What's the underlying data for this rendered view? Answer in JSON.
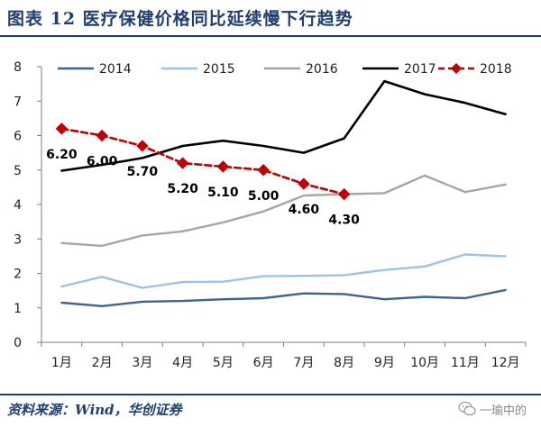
{
  "header": {
    "title": "图表 12   医疗保健价格同比延续慢下行趋势"
  },
  "footer": {
    "source": "资料来源：Wind，华创证券",
    "watermark": "一瑜中的"
  },
  "colors": {
    "title": "#1f3f73",
    "axis": "#7f7f7f"
  },
  "chart_data": {
    "type": "line",
    "title": "医疗保健价格同比延续慢下行趋势",
    "xlabel": "",
    "ylabel": "",
    "categories": [
      "1月",
      "2月",
      "3月",
      "4月",
      "5月",
      "6月",
      "7月",
      "8月",
      "9月",
      "10月",
      "11月",
      "12月"
    ],
    "ylim": [
      0,
      8
    ],
    "yticks": [
      "0",
      "1",
      "2",
      "3",
      "4",
      "5",
      "6",
      "7",
      "8"
    ],
    "legend_position": "top",
    "series": [
      {
        "name": "2014",
        "color": "#3d6494",
        "dashed": false,
        "marker": false,
        "values": [
          1.15,
          1.05,
          1.18,
          1.2,
          1.25,
          1.28,
          1.42,
          1.4,
          1.25,
          1.32,
          1.28,
          1.52
        ]
      },
      {
        "name": "2015",
        "color": "#9dc3e6",
        "dashed": false,
        "marker": false,
        "values": [
          1.62,
          1.9,
          1.58,
          1.75,
          1.76,
          1.92,
          1.93,
          1.95,
          2.1,
          2.2,
          2.55,
          2.5
        ]
      },
      {
        "name": "2016",
        "color": "#a6a6a6",
        "dashed": false,
        "marker": false,
        "values": [
          2.88,
          2.8,
          3.1,
          3.22,
          3.48,
          3.8,
          4.26,
          4.3,
          4.33,
          4.84,
          4.36,
          4.58
        ]
      },
      {
        "name": "2017",
        "color": "#000000",
        "dashed": false,
        "marker": false,
        "values": [
          4.98,
          5.15,
          5.35,
          5.7,
          5.85,
          5.7,
          5.5,
          5.92,
          7.58,
          7.2,
          6.95,
          6.62
        ]
      },
      {
        "name": "2018",
        "color": "#c00000",
        "dashed": true,
        "marker": true,
        "values": [
          6.2,
          6.0,
          5.7,
          5.2,
          5.1,
          5.0,
          4.6,
          4.3,
          null,
          null,
          null,
          null
        ],
        "data_labels": [
          "6.20",
          "6.00",
          "5.70",
          "5.20",
          "5.10",
          "5.00",
          "4.60",
          "4.30"
        ]
      }
    ]
  }
}
